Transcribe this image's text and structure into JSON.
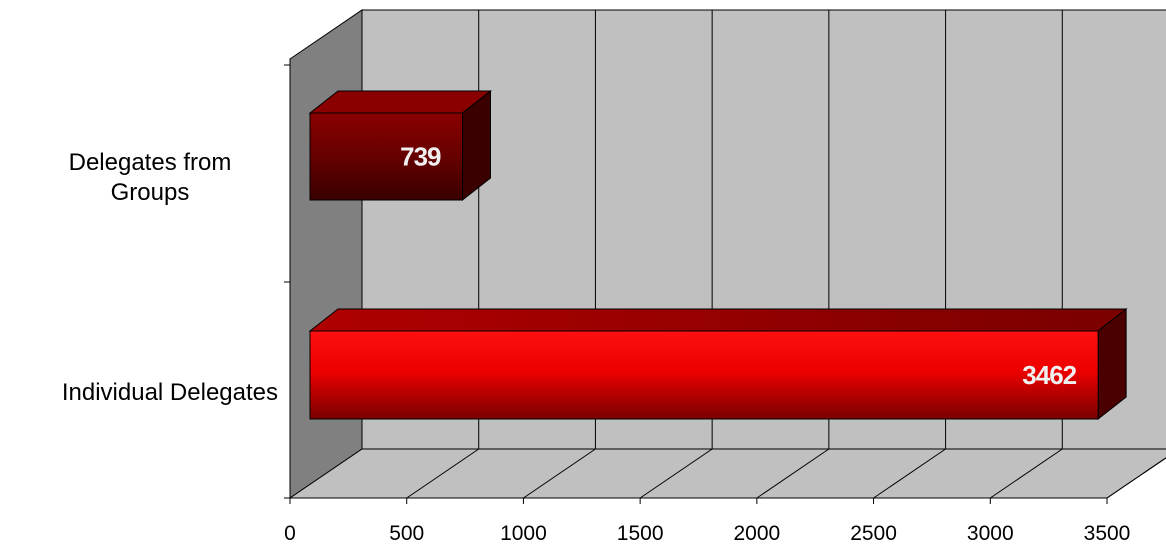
{
  "chart_data": {
    "type": "bar",
    "orientation": "horizontal",
    "style": "3d",
    "title": "",
    "xlabel": "",
    "ylabel": "",
    "categories": [
      {
        "lines": [
          "Individual Delegates"
        ]
      },
      {
        "lines": [
          "Delegates from",
          "Groups"
        ]
      }
    ],
    "values": [
      3462,
      739
    ],
    "data_labels": [
      "3462",
      "739"
    ],
    "xlim": [
      0,
      3500
    ],
    "ticks": [
      0,
      500,
      1000,
      1500,
      2000,
      2500,
      3000,
      3500
    ],
    "tick_labels": [
      "0",
      "500",
      "1000",
      "1500",
      "2000",
      "2500",
      "3000",
      "3500"
    ],
    "grid": true,
    "legend": "none",
    "colors": {
      "back_wall": "#c0c0c0",
      "side_wall": "#808080",
      "floor": "#c0c0c0",
      "bar_bright": "#ff0000",
      "bar_dark": "#7a0000",
      "bar_top": "#990000",
      "bar_side": "#3a0000"
    }
  }
}
